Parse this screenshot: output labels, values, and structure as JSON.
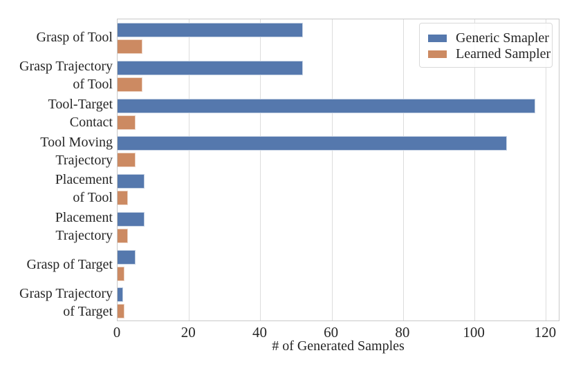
{
  "chart_data": {
    "type": "bar",
    "orientation": "horizontal",
    "title": "",
    "xlabel": "# of Generated Samples",
    "ylabel": "",
    "categories": [
      "Grasp of Tool",
      "Grasp Trajectory of Tool",
      "Tool-Target Contact",
      "Tool Moving Trajectory",
      "Placement of Tool",
      "Placement Trajectory",
      "Grasp of Target",
      "Grasp Trajectory of Target"
    ],
    "category_label_lines": [
      [
        "Grasp of Tool"
      ],
      [
        "Grasp Trajectory",
        "of Tool"
      ],
      [
        "Tool-Target",
        "Contact"
      ],
      [
        "Tool Moving",
        "Trajectory"
      ],
      [
        "Placement",
        "of Tool"
      ],
      [
        "Placement",
        "Trajectory"
      ],
      [
        "Grasp of Target"
      ],
      [
        "Grasp Trajectory",
        "of Target"
      ]
    ],
    "series": [
      {
        "name": "Generic Smapler",
        "color": "#5578AD",
        "values": [
          52,
          52,
          117,
          109,
          7.5,
          7.5,
          5,
          1.5
        ]
      },
      {
        "name": "Learned Sampler",
        "color": "#CC8A62",
        "values": [
          7,
          7,
          5,
          5,
          3,
          3,
          2,
          2
        ]
      }
    ],
    "xticks": [
      0,
      20,
      40,
      60,
      80,
      100,
      120
    ],
    "xlim": [
      0,
      124
    ],
    "grid": true,
    "legend": {
      "position": "upper-right",
      "entries": [
        "Generic Smapler",
        "Learned Sampler"
      ]
    }
  },
  "colors": {
    "grid": "#dcdcdc",
    "spine": "#c8c8c8",
    "text": "#262626",
    "background": "#ffffff"
  }
}
